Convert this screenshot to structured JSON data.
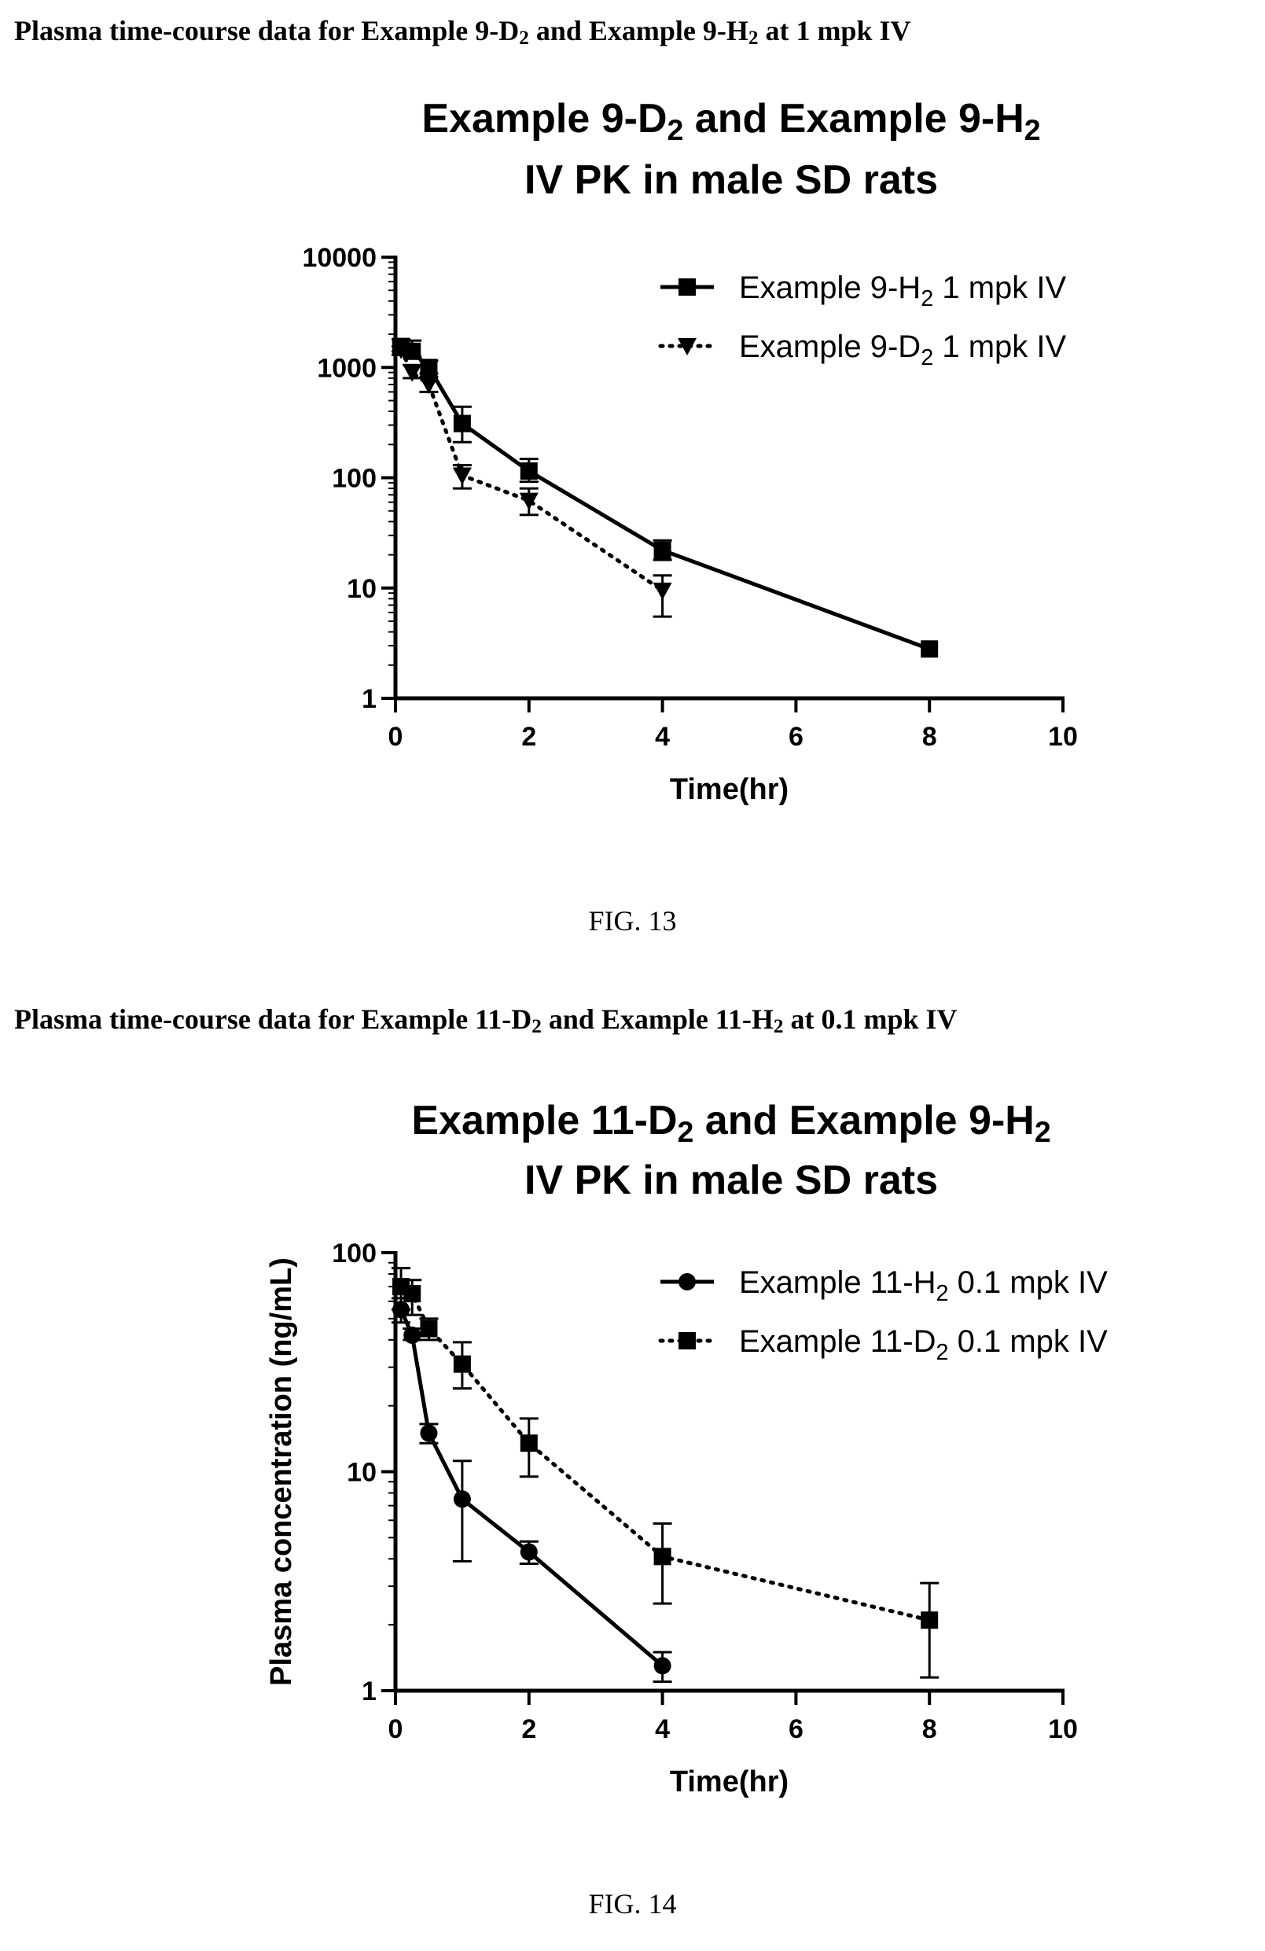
{
  "figures": [
    {
      "heading": {
        "pre": "Plasma time-course data for Example 9-D",
        "sub1": "2",
        "mid": " and Example 9-H",
        "sub2": "2",
        "post": " at 1 mpk IV"
      },
      "fig_label": "FIG. 13"
    },
    {
      "heading": {
        "pre": "Plasma time-course data for Example 11-D",
        "sub1": "2",
        "mid": " and Example 11-H",
        "sub2": "2",
        "post": " at 0.1 mpk IV"
      },
      "fig_label": "FIG. 14"
    }
  ],
  "chart_data": [
    {
      "type": "line",
      "title_line1": {
        "a": "Example 9-D",
        "s1": "2",
        "b": " and Example 9-H",
        "s2": "2"
      },
      "title_line2": "IV PK in male SD rats",
      "xlabel": "Time(hr)",
      "ylabel": "",
      "xlim": [
        0,
        10
      ],
      "ylim": [
        1,
        10000
      ],
      "yscale": "log",
      "x_ticks": [
        "0",
        "2",
        "4",
        "6",
        "8",
        "10"
      ],
      "y_ticks": [
        "1",
        "10",
        "100",
        "1000",
        "10000"
      ],
      "legend_position": "top-right",
      "series": [
        {
          "name": {
            "a": "Example 9-H",
            "s": "2",
            "b": " 1 mpk IV"
          },
          "marker": "square",
          "line": "solid",
          "points": [
            {
              "x": 0.083,
              "y": 1550,
              "err_hi": 1800,
              "err_lo": 1400
            },
            {
              "x": 0.25,
              "y": 1400,
              "err_hi": 1750,
              "err_lo": 1250
            },
            {
              "x": 0.5,
              "y": 1000,
              "err_hi": 1150,
              "err_lo": 880
            },
            {
              "x": 1,
              "y": 310,
              "err_hi": 440,
              "err_lo": 210
            },
            {
              "x": 2,
              "y": 115,
              "err_hi": 148,
              "err_lo": 92
            },
            {
              "x": 4,
              "y": 22,
              "err_hi": 27,
              "err_lo": 18
            },
            {
              "x": 8,
              "y": 2.8,
              "err_hi": 2.8,
              "err_lo": 2.8
            }
          ]
        },
        {
          "name": {
            "a": "Example 9-D",
            "s": "2",
            "b": " 1 mpk IV"
          },
          "marker": "triangle-down",
          "line": "dotted",
          "points": [
            {
              "x": 0.083,
              "y": 1450,
              "err_hi": 1550,
              "err_lo": 1300
            },
            {
              "x": 0.25,
              "y": 900,
              "err_hi": 1050,
              "err_lo": 800
            },
            {
              "x": 0.5,
              "y": 700,
              "err_hi": 820,
              "err_lo": 600
            },
            {
              "x": 1,
              "y": 105,
              "err_hi": 130,
              "err_lo": 80
            },
            {
              "x": 2,
              "y": 62,
              "err_hi": 80,
              "err_lo": 46
            },
            {
              "x": 4,
              "y": 9.5,
              "err_hi": 13,
              "err_lo": 5.5
            }
          ]
        }
      ]
    },
    {
      "type": "line",
      "title_line1": {
        "a": "Example 11-D",
        "s1": "2",
        "b": " and Example 9-H",
        "s2": "2"
      },
      "title_line2": "IV PK in male SD rats",
      "xlabel": "Time(hr)",
      "ylabel": "Plasma concentration (ng/mL)",
      "xlim": [
        0,
        10
      ],
      "ylim": [
        1,
        100
      ],
      "yscale": "log",
      "x_ticks": [
        "0",
        "2",
        "4",
        "6",
        "8",
        "10"
      ],
      "y_ticks": [
        "1",
        "10",
        "100"
      ],
      "legend_position": "top-right",
      "series": [
        {
          "name": {
            "a": "Example 11-H",
            "s": "2",
            "b": " 0.1 mpk IV"
          },
          "marker": "circle",
          "line": "solid",
          "points": [
            {
              "x": 0.083,
              "y": 55,
              "err_hi": 62,
              "err_lo": 48
            },
            {
              "x": 0.25,
              "y": 42,
              "err_hi": 45,
              "err_lo": 40
            },
            {
              "x": 0.5,
              "y": 15,
              "err_hi": 16.5,
              "err_lo": 13.5
            },
            {
              "x": 1,
              "y": 7.5,
              "err_hi": 11.2,
              "err_lo": 3.9
            },
            {
              "x": 2,
              "y": 4.3,
              "err_hi": 4.8,
              "err_lo": 3.8
            },
            {
              "x": 4,
              "y": 1.3,
              "err_hi": 1.5,
              "err_lo": 1.1
            }
          ]
        },
        {
          "name": {
            "a": "Example 11-D",
            "s": "2",
            "b": " 0.1 mpk IV"
          },
          "marker": "square",
          "line": "dotted",
          "points": [
            {
              "x": 0.083,
              "y": 70,
              "err_hi": 85,
              "err_lo": 55
            },
            {
              "x": 0.25,
              "y": 65,
              "err_hi": 75,
              "err_lo": 52
            },
            {
              "x": 0.5,
              "y": 45,
              "err_hi": 50,
              "err_lo": 40
            },
            {
              "x": 1,
              "y": 31,
              "err_hi": 39,
              "err_lo": 24
            },
            {
              "x": 2,
              "y": 13.5,
              "err_hi": 17.5,
              "err_lo": 9.5
            },
            {
              "x": 4,
              "y": 4.1,
              "err_hi": 5.8,
              "err_lo": 2.5
            },
            {
              "x": 8,
              "y": 2.1,
              "err_hi": 3.1,
              "err_lo": 1.15
            }
          ]
        }
      ]
    }
  ]
}
